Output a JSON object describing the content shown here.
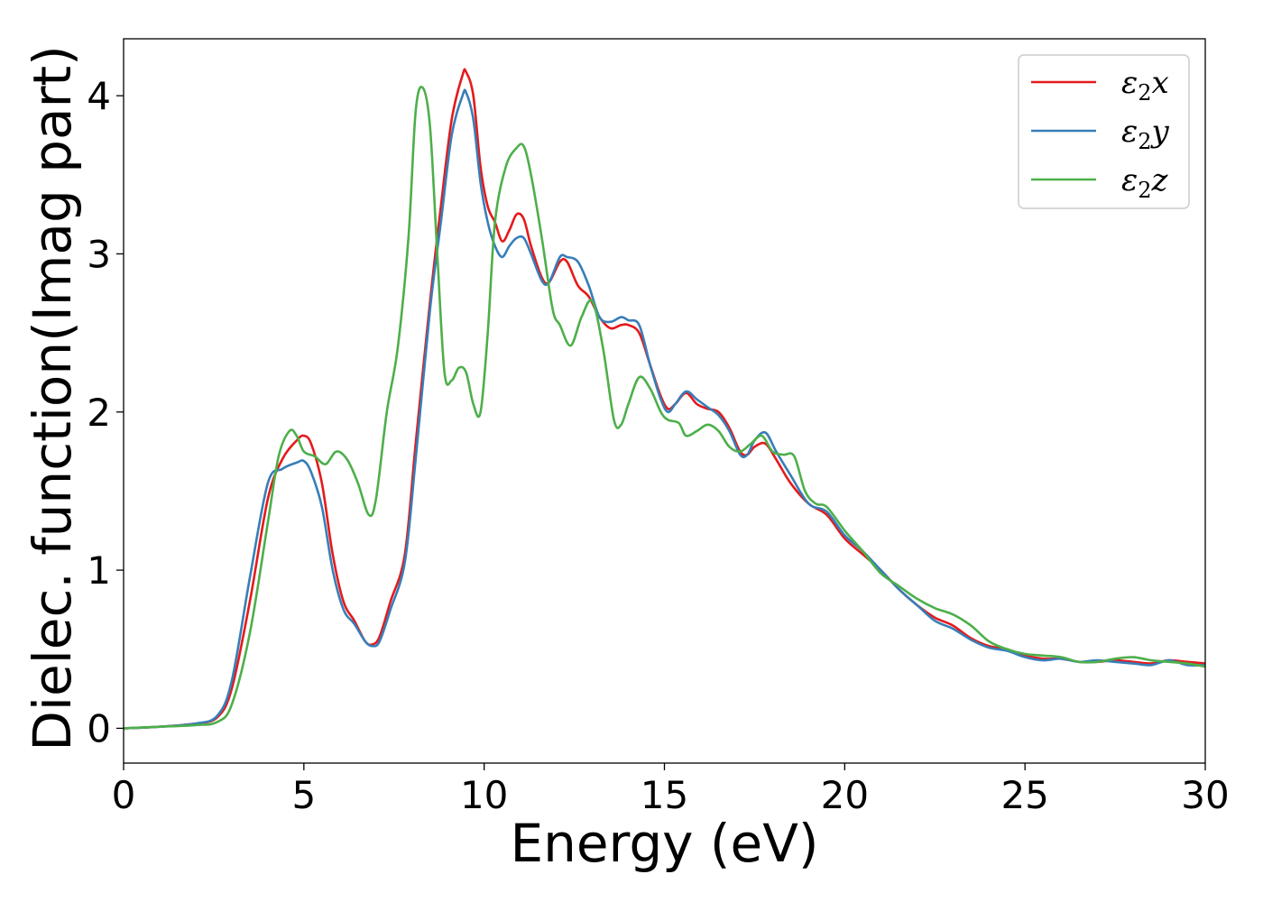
{
  "chart_data": {
    "type": "line",
    "title": "",
    "xlabel": "Energy (eV)",
    "ylabel": "Dielec. function(Imag part)",
    "xlim": [
      0,
      30
    ],
    "ylim": [
      -0.22,
      4.36
    ],
    "x_ticks": [
      0,
      5,
      10,
      15,
      20,
      25,
      30
    ],
    "y_ticks": [
      0,
      1,
      2,
      3,
      4
    ],
    "x_tick_labels": [
      "0",
      "5",
      "10",
      "15",
      "20",
      "25",
      "30"
    ],
    "y_tick_labels": [
      "0",
      "1",
      "2",
      "3",
      "4"
    ],
    "grid": false,
    "legend_position": "top-right",
    "series": [
      {
        "name": "ε2x",
        "legend": {
          "base": "ε",
          "sub": "2",
          "tail": "x"
        },
        "color": "#e41a1c",
        "points": [
          [
            0,
            0
          ],
          [
            1,
            0.01
          ],
          [
            2,
            0.03
          ],
          [
            2.6,
            0.07
          ],
          [
            3,
            0.25
          ],
          [
            3.5,
            0.8
          ],
          [
            4,
            1.45
          ],
          [
            4.4,
            1.7
          ],
          [
            4.8,
            1.82
          ],
          [
            5,
            1.85
          ],
          [
            5.2,
            1.8
          ],
          [
            5.5,
            1.55
          ],
          [
            5.8,
            1.1
          ],
          [
            6.1,
            0.8
          ],
          [
            6.4,
            0.68
          ],
          [
            6.7,
            0.55
          ],
          [
            6.9,
            0.53
          ],
          [
            7.1,
            0.58
          ],
          [
            7.4,
            0.8
          ],
          [
            7.8,
            1.1
          ],
          [
            8.1,
            1.8
          ],
          [
            8.5,
            2.7
          ],
          [
            8.8,
            3.3
          ],
          [
            9.1,
            3.85
          ],
          [
            9.4,
            4.13
          ],
          [
            9.5,
            4.15
          ],
          [
            9.7,
            4.0
          ],
          [
            9.9,
            3.55
          ],
          [
            10.1,
            3.3
          ],
          [
            10.3,
            3.2
          ],
          [
            10.5,
            3.08
          ],
          [
            10.7,
            3.15
          ],
          [
            10.9,
            3.25
          ],
          [
            11.1,
            3.22
          ],
          [
            11.3,
            3.05
          ],
          [
            11.6,
            2.85
          ],
          [
            11.8,
            2.82
          ],
          [
            12.1,
            2.95
          ],
          [
            12.3,
            2.95
          ],
          [
            12.6,
            2.8
          ],
          [
            12.9,
            2.73
          ],
          [
            13.2,
            2.6
          ],
          [
            13.5,
            2.53
          ],
          [
            13.8,
            2.55
          ],
          [
            14.0,
            2.55
          ],
          [
            14.3,
            2.5
          ],
          [
            14.6,
            2.3
          ],
          [
            14.9,
            2.1
          ],
          [
            15.1,
            2.02
          ],
          [
            15.3,
            2.05
          ],
          [
            15.6,
            2.12
          ],
          [
            15.9,
            2.05
          ],
          [
            16.2,
            2.02
          ],
          [
            16.5,
            2.0
          ],
          [
            16.8,
            1.9
          ],
          [
            17.1,
            1.75
          ],
          [
            17.3,
            1.73
          ],
          [
            17.5,
            1.78
          ],
          [
            17.8,
            1.8
          ],
          [
            18.1,
            1.7
          ],
          [
            18.5,
            1.55
          ],
          [
            19.0,
            1.42
          ],
          [
            19.5,
            1.35
          ],
          [
            20.0,
            1.2
          ],
          [
            20.5,
            1.1
          ],
          [
            21.0,
            1.0
          ],
          [
            21.5,
            0.88
          ],
          [
            22.0,
            0.78
          ],
          [
            22.5,
            0.7
          ],
          [
            23.0,
            0.65
          ],
          [
            23.5,
            0.57
          ],
          [
            24.0,
            0.52
          ],
          [
            24.5,
            0.5
          ],
          [
            25.0,
            0.46
          ],
          [
            25.5,
            0.44
          ],
          [
            26.0,
            0.44
          ],
          [
            26.5,
            0.42
          ],
          [
            27.0,
            0.42
          ],
          [
            27.5,
            0.43
          ],
          [
            28.0,
            0.42
          ],
          [
            28.5,
            0.41
          ],
          [
            29.0,
            0.43
          ],
          [
            29.5,
            0.42
          ],
          [
            30.0,
            0.41
          ]
        ]
      },
      {
        "name": "ε2y",
        "legend": {
          "base": "ε",
          "sub": "2",
          "tail": "y"
        },
        "color": "#377eb8",
        "points": [
          [
            0,
            0
          ],
          [
            1,
            0.01
          ],
          [
            2,
            0.03
          ],
          [
            2.6,
            0.08
          ],
          [
            3,
            0.3
          ],
          [
            3.5,
            0.95
          ],
          [
            4,
            1.55
          ],
          [
            4.4,
            1.64
          ],
          [
            4.8,
            1.68
          ],
          [
            5,
            1.69
          ],
          [
            5.2,
            1.62
          ],
          [
            5.5,
            1.4
          ],
          [
            5.8,
            1.0
          ],
          [
            6.1,
            0.75
          ],
          [
            6.4,
            0.66
          ],
          [
            6.7,
            0.55
          ],
          [
            6.9,
            0.52
          ],
          [
            7.1,
            0.55
          ],
          [
            7.4,
            0.75
          ],
          [
            7.8,
            1.05
          ],
          [
            8.1,
            1.7
          ],
          [
            8.5,
            2.65
          ],
          [
            8.8,
            3.2
          ],
          [
            9.1,
            3.75
          ],
          [
            9.4,
            4.0
          ],
          [
            9.5,
            4.02
          ],
          [
            9.7,
            3.85
          ],
          [
            9.9,
            3.45
          ],
          [
            10.1,
            3.2
          ],
          [
            10.3,
            3.05
          ],
          [
            10.5,
            2.98
          ],
          [
            10.7,
            3.05
          ],
          [
            10.9,
            3.1
          ],
          [
            11.1,
            3.1
          ],
          [
            11.3,
            3.0
          ],
          [
            11.6,
            2.83
          ],
          [
            11.8,
            2.82
          ],
          [
            12.1,
            2.98
          ],
          [
            12.3,
            2.98
          ],
          [
            12.6,
            2.95
          ],
          [
            12.9,
            2.8
          ],
          [
            13.2,
            2.6
          ],
          [
            13.5,
            2.57
          ],
          [
            13.8,
            2.6
          ],
          [
            14.0,
            2.58
          ],
          [
            14.3,
            2.55
          ],
          [
            14.6,
            2.3
          ],
          [
            14.9,
            2.08
          ],
          [
            15.1,
            2.0
          ],
          [
            15.3,
            2.05
          ],
          [
            15.6,
            2.13
          ],
          [
            15.9,
            2.08
          ],
          [
            16.2,
            2.03
          ],
          [
            16.5,
            1.98
          ],
          [
            16.8,
            1.88
          ],
          [
            17.1,
            1.73
          ],
          [
            17.3,
            1.73
          ],
          [
            17.5,
            1.82
          ],
          [
            17.8,
            1.87
          ],
          [
            18.1,
            1.75
          ],
          [
            18.5,
            1.6
          ],
          [
            19.0,
            1.42
          ],
          [
            19.5,
            1.37
          ],
          [
            20.0,
            1.22
          ],
          [
            20.5,
            1.12
          ],
          [
            21.0,
            1.0
          ],
          [
            21.5,
            0.88
          ],
          [
            22.0,
            0.78
          ],
          [
            22.5,
            0.68
          ],
          [
            23.0,
            0.63
          ],
          [
            23.5,
            0.56
          ],
          [
            24.0,
            0.51
          ],
          [
            24.5,
            0.49
          ],
          [
            25.0,
            0.45
          ],
          [
            25.5,
            0.43
          ],
          [
            26.0,
            0.44
          ],
          [
            26.5,
            0.42
          ],
          [
            27.0,
            0.43
          ],
          [
            27.5,
            0.42
          ],
          [
            28.0,
            0.41
          ],
          [
            28.5,
            0.4
          ],
          [
            29.0,
            0.43
          ],
          [
            29.5,
            0.4
          ],
          [
            30.0,
            0.4
          ]
        ]
      },
      {
        "name": "ε2z",
        "legend": {
          "base": "ε",
          "sub": "2",
          "tail": "z"
        },
        "color": "#4daf4a",
        "points": [
          [
            0,
            0
          ],
          [
            1,
            0.01
          ],
          [
            2,
            0.02
          ],
          [
            2.6,
            0.04
          ],
          [
            3,
            0.15
          ],
          [
            3.5,
            0.6
          ],
          [
            4,
            1.3
          ],
          [
            4.3,
            1.72
          ],
          [
            4.6,
            1.88
          ],
          [
            4.8,
            1.85
          ],
          [
            5.0,
            1.75
          ],
          [
            5.3,
            1.72
          ],
          [
            5.6,
            1.67
          ],
          [
            5.9,
            1.75
          ],
          [
            6.2,
            1.7
          ],
          [
            6.5,
            1.55
          ],
          [
            6.8,
            1.35
          ],
          [
            7.0,
            1.45
          ],
          [
            7.3,
            2.0
          ],
          [
            7.6,
            2.4
          ],
          [
            7.9,
            3.1
          ],
          [
            8.1,
            3.9
          ],
          [
            8.3,
            4.05
          ],
          [
            8.5,
            3.8
          ],
          [
            8.7,
            3.0
          ],
          [
            8.9,
            2.25
          ],
          [
            9.1,
            2.2
          ],
          [
            9.3,
            2.28
          ],
          [
            9.5,
            2.25
          ],
          [
            9.7,
            2.05
          ],
          [
            9.9,
            2.0
          ],
          [
            10.1,
            2.5
          ],
          [
            10.3,
            3.2
          ],
          [
            10.6,
            3.55
          ],
          [
            10.9,
            3.67
          ],
          [
            11.1,
            3.68
          ],
          [
            11.3,
            3.5
          ],
          [
            11.6,
            3.1
          ],
          [
            11.9,
            2.65
          ],
          [
            12.1,
            2.55
          ],
          [
            12.4,
            2.42
          ],
          [
            12.7,
            2.6
          ],
          [
            13.0,
            2.7
          ],
          [
            13.3,
            2.4
          ],
          [
            13.6,
            1.95
          ],
          [
            13.8,
            1.92
          ],
          [
            14.0,
            2.05
          ],
          [
            14.3,
            2.22
          ],
          [
            14.6,
            2.15
          ],
          [
            14.9,
            2.0
          ],
          [
            15.1,
            1.95
          ],
          [
            15.4,
            1.93
          ],
          [
            15.6,
            1.85
          ],
          [
            15.9,
            1.88
          ],
          [
            16.2,
            1.92
          ],
          [
            16.5,
            1.88
          ],
          [
            16.8,
            1.78
          ],
          [
            17.1,
            1.75
          ],
          [
            17.4,
            1.8
          ],
          [
            17.7,
            1.85
          ],
          [
            18.0,
            1.75
          ],
          [
            18.3,
            1.73
          ],
          [
            18.6,
            1.72
          ],
          [
            18.9,
            1.5
          ],
          [
            19.2,
            1.42
          ],
          [
            19.5,
            1.4
          ],
          [
            20.0,
            1.25
          ],
          [
            20.5,
            1.12
          ],
          [
            21.0,
            0.98
          ],
          [
            21.5,
            0.9
          ],
          [
            22.0,
            0.82
          ],
          [
            22.5,
            0.76
          ],
          [
            23.0,
            0.72
          ],
          [
            23.5,
            0.65
          ],
          [
            24.0,
            0.55
          ],
          [
            24.5,
            0.5
          ],
          [
            25.0,
            0.47
          ],
          [
            25.5,
            0.46
          ],
          [
            26.0,
            0.45
          ],
          [
            26.5,
            0.42
          ],
          [
            27.0,
            0.42
          ],
          [
            27.5,
            0.44
          ],
          [
            28.0,
            0.45
          ],
          [
            28.5,
            0.43
          ],
          [
            29.0,
            0.42
          ],
          [
            29.5,
            0.41
          ],
          [
            30.0,
            0.39
          ]
        ]
      }
    ]
  }
}
